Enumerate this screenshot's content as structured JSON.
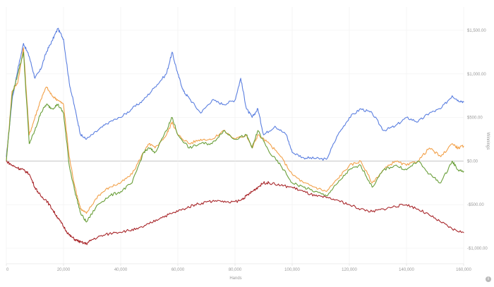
{
  "chart_data": {
    "type": "line",
    "title": "",
    "xlabel": "Hands",
    "ylabel": "Winnings",
    "xlim": [
      0,
      160000
    ],
    "ylim": [
      -1000,
      1500
    ],
    "x_ticks": [
      0,
      20000,
      40000,
      60000,
      80000,
      100000,
      120000,
      140000,
      160000
    ],
    "x_tick_labels": [
      "0",
      "20,000",
      "40,000",
      "60,000",
      "80,000",
      "100,000",
      "120,000",
      "140,000",
      "160,000"
    ],
    "y_ticks": [
      -1000,
      -500,
      0,
      500,
      1000,
      1500
    ],
    "y_tick_labels": [
      "-$1,000.00",
      "-$500.00",
      "$0.00",
      "$500.00",
      "$1,000.00",
      "$1,500.00"
    ],
    "y_axis_side": "right",
    "grid": true,
    "legend": "none",
    "series": [
      {
        "color": "#5b7fe0",
        "x": [
          0,
          2000,
          4000,
          6000,
          8000,
          10000,
          12000,
          14000,
          16000,
          18000,
          20000,
          22000,
          24000,
          26000,
          28000,
          32000,
          36000,
          40000,
          44000,
          48000,
          52000,
          56000,
          58000,
          60000,
          62000,
          64000,
          68000,
          72000,
          76000,
          80000,
          82000,
          84000,
          86000,
          88000,
          90000,
          94000,
          98000,
          100000,
          104000,
          108000,
          112000,
          116000,
          120000,
          124000,
          128000,
          132000,
          136000,
          140000,
          144000,
          148000,
          152000,
          156000,
          158000,
          160000
        ],
        "y": [
          50,
          700,
          1050,
          1350,
          1200,
          950,
          1050,
          1250,
          1380,
          1520,
          1400,
          900,
          600,
          300,
          250,
          350,
          450,
          500,
          600,
          700,
          850,
          1000,
          1250,
          1000,
          800,
          720,
          550,
          700,
          650,
          700,
          950,
          600,
          500,
          600,
          300,
          400,
          300,
          100,
          40,
          30,
          20,
          300,
          500,
          600,
          550,
          350,
          400,
          500,
          450,
          550,
          600,
          750,
          700,
          680
        ]
      },
      {
        "color": "#f2a14a",
        "x": [
          0,
          2000,
          4000,
          6000,
          8000,
          10000,
          12000,
          14000,
          16000,
          18000,
          20000,
          22000,
          24000,
          26000,
          28000,
          32000,
          36000,
          40000,
          44000,
          48000,
          50000,
          52000,
          56000,
          58000,
          60000,
          64000,
          68000,
          72000,
          76000,
          80000,
          84000,
          86000,
          88000,
          92000,
          96000,
          100000,
          104000,
          108000,
          112000,
          116000,
          120000,
          124000,
          128000,
          132000,
          136000,
          140000,
          144000,
          148000,
          152000,
          156000,
          158000,
          160000
        ],
        "y": [
          0,
          800,
          900,
          1300,
          300,
          500,
          700,
          850,
          750,
          700,
          650,
          50,
          -300,
          -550,
          -600,
          -400,
          -300,
          -250,
          -150,
          100,
          200,
          150,
          300,
          450,
          300,
          200,
          250,
          250,
          350,
          250,
          300,
          150,
          300,
          200,
          50,
          -150,
          -250,
          -300,
          -350,
          -200,
          -50,
          0,
          -250,
          -100,
          0,
          -50,
          0,
          150,
          50,
          200,
          150,
          170
        ]
      },
      {
        "color": "#6a9f3a",
        "x": [
          0,
          2000,
          4000,
          6000,
          8000,
          10000,
          12000,
          14000,
          16000,
          18000,
          20000,
          22000,
          24000,
          26000,
          28000,
          32000,
          36000,
          40000,
          44000,
          48000,
          50000,
          52000,
          56000,
          58000,
          60000,
          64000,
          68000,
          72000,
          76000,
          80000,
          84000,
          86000,
          88000,
          92000,
          96000,
          100000,
          104000,
          108000,
          112000,
          116000,
          120000,
          124000,
          128000,
          132000,
          136000,
          140000,
          144000,
          148000,
          152000,
          156000,
          158000,
          160000
        ],
        "y": [
          0,
          750,
          1000,
          1250,
          200,
          350,
          550,
          650,
          600,
          650,
          550,
          -50,
          -350,
          -600,
          -700,
          -500,
          -400,
          -350,
          -250,
          100,
          150,
          100,
          350,
          500,
          300,
          150,
          200,
          200,
          350,
          250,
          300,
          150,
          350,
          100,
          -50,
          -250,
          -300,
          -350,
          -400,
          -250,
          -100,
          -50,
          -300,
          -100,
          -50,
          -100,
          0,
          -150,
          -250,
          0,
          -100,
          -120
        ]
      },
      {
        "color": "#a8262a",
        "x": [
          0,
          2000,
          4000,
          6000,
          8000,
          10000,
          12000,
          14000,
          16000,
          18000,
          20000,
          22000,
          24000,
          26000,
          28000,
          30000,
          34000,
          38000,
          42000,
          46000,
          50000,
          54000,
          58000,
          62000,
          66000,
          70000,
          74000,
          78000,
          82000,
          84000,
          86000,
          88000,
          90000,
          92000,
          96000,
          100000,
          104000,
          108000,
          112000,
          116000,
          120000,
          124000,
          128000,
          132000,
          136000,
          140000,
          144000,
          148000,
          152000,
          156000,
          160000
        ],
        "y": [
          0,
          -50,
          -80,
          -100,
          -150,
          -300,
          -400,
          -450,
          -550,
          -650,
          -750,
          -850,
          -900,
          -930,
          -950,
          -900,
          -850,
          -820,
          -800,
          -780,
          -720,
          -650,
          -600,
          -550,
          -500,
          -470,
          -450,
          -480,
          -450,
          -400,
          -350,
          -300,
          -250,
          -250,
          -280,
          -300,
          -350,
          -400,
          -420,
          -450,
          -500,
          -550,
          -580,
          -550,
          -520,
          -500,
          -550,
          -620,
          -700,
          -780,
          -820
        ]
      }
    ]
  }
}
